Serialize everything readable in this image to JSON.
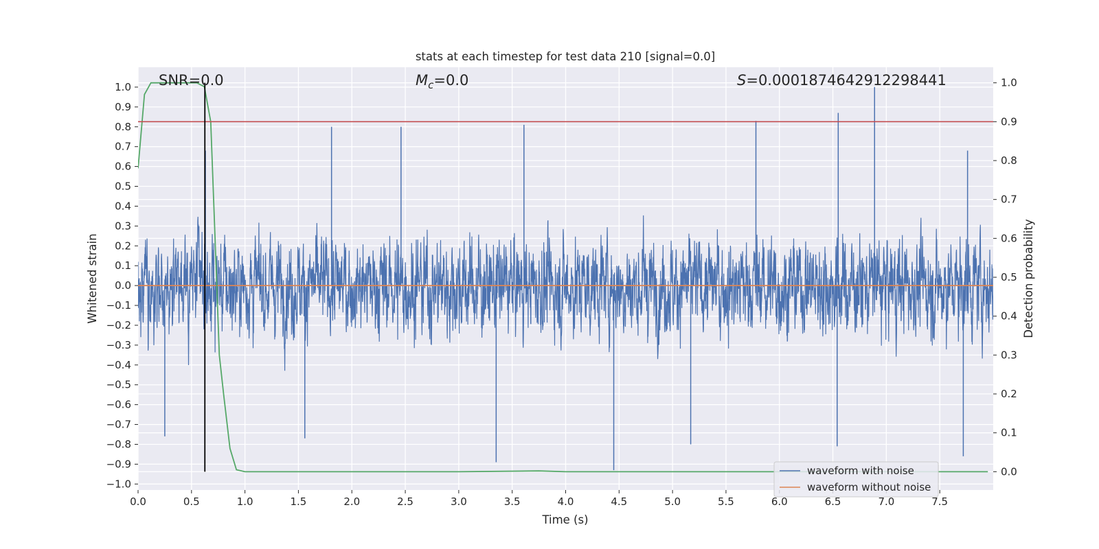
{
  "chart_data": {
    "type": "line",
    "title": "stats at each timestep for test data 210 [signal=0.0]",
    "xlabel": "Time (s)",
    "ylabel": "Whitened strain",
    "y2label": "Detection probability",
    "xlim": [
      0.0,
      8.0
    ],
    "ylim": [
      -1.03,
      1.1
    ],
    "y2lim": [
      -0.047,
      1.04
    ],
    "xticks": [
      "0.0",
      "0.5",
      "1.0",
      "1.5",
      "2.0",
      "2.5",
      "3.0",
      "3.5",
      "4.0",
      "4.5",
      "5.0",
      "5.5",
      "6.0",
      "6.5",
      "7.0",
      "7.5"
    ],
    "yticks": [
      "1.0",
      "0.9",
      "0.8",
      "0.7",
      "0.6",
      "0.5",
      "0.4",
      "0.3",
      "0.2",
      "0.1",
      "0.0",
      "−0.1",
      "−0.2",
      "−0.3",
      "−0.4",
      "−0.5",
      "−0.6",
      "−0.7",
      "−0.8",
      "−0.9",
      "−1.0"
    ],
    "y2ticks": [
      "0.0",
      "0.1",
      "0.2",
      "0.3",
      "0.4",
      "0.5",
      "0.6",
      "0.7",
      "0.8",
      "0.9",
      "1.0"
    ],
    "grid": true,
    "background": "#EAEAF2",
    "annotations": {
      "snr": "SNR=0.0",
      "mc_symbol": "M",
      "mc_sub": "c",
      "mc_value": "=0.0",
      "s_symbol": "S",
      "s_value": "=0.0001874642912298441"
    },
    "legend": {
      "placement": "lower-right",
      "entries": [
        {
          "label": "waveform with noise",
          "color": "#4C72B0"
        },
        {
          "label": "waveform without noise",
          "color": "#DD8452"
        }
      ]
    },
    "series": [
      {
        "name": "waveform with noise",
        "axis": "left",
        "color": "#4C72B0",
        "kind": "noise",
        "x_range": [
          0.0,
          8.0
        ],
        "envelope": [
          -0.88,
          0.93
        ],
        "peaks": [
          {
            "x": 0.63,
            "y": 0.68
          },
          {
            "x": 1.81,
            "y": 0.8
          },
          {
            "x": 2.46,
            "y": 0.8
          },
          {
            "x": 3.61,
            "y": 0.81
          },
          {
            "x": 5.78,
            "y": 0.83
          },
          {
            "x": 6.55,
            "y": 0.87
          },
          {
            "x": 6.89,
            "y": 1.0
          },
          {
            "x": 7.76,
            "y": 0.68
          }
        ],
        "troughs": [
          {
            "x": 0.25,
            "y": -0.76
          },
          {
            "x": 1.56,
            "y": -0.77
          },
          {
            "x": 3.35,
            "y": -0.89
          },
          {
            "x": 4.45,
            "y": -0.93
          },
          {
            "x": 5.17,
            "y": -0.8
          },
          {
            "x": 6.54,
            "y": -0.81
          },
          {
            "x": 7.72,
            "y": -0.86
          }
        ]
      },
      {
        "name": "waveform without noise",
        "axis": "left",
        "color": "#DD8452",
        "x": [
          0.0,
          8.0
        ],
        "y": [
          0.0,
          0.0
        ]
      },
      {
        "axis": "right",
        "color": "#55A868",
        "x": [
          0.0,
          0.06,
          0.12,
          0.2,
          0.3,
          0.45,
          0.55,
          0.62,
          0.68,
          0.72,
          0.76,
          0.8,
          0.86,
          0.92,
          1.0,
          2.0,
          3.0,
          3.75,
          4.0,
          5.0,
          6.0,
          7.0,
          7.95
        ],
        "y": [
          0.78,
          0.97,
          1.0,
          1.0,
          1.0,
          1.0,
          1.0,
          0.99,
          0.9,
          0.6,
          0.3,
          0.2,
          0.06,
          0.005,
          0.0,
          0.0,
          0.0,
          0.002,
          0.0,
          0.0,
          0.0,
          0.0,
          0.0
        ]
      },
      {
        "axis": "right",
        "color": "#C44E52",
        "kind": "hline",
        "y": 0.9
      },
      {
        "axis": "right",
        "color": "#000000",
        "kind": "vline",
        "x": 0.625,
        "y": [
          0.0,
          1.0
        ]
      }
    ]
  }
}
